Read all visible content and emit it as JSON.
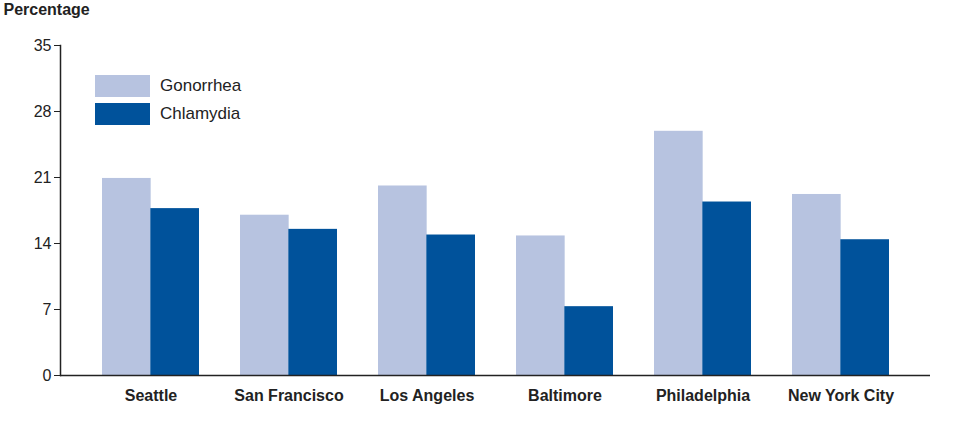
{
  "chart_data": {
    "type": "bar",
    "y_label": "Percentage",
    "categories": [
      "Seattle",
      "San Francisco",
      "Los Angeles",
      "Baltimore",
      "Philadelphia",
      "New York City"
    ],
    "series": [
      {
        "name": "Gonorrhea",
        "color": "#b7c3e0",
        "values": [
          20.9,
          17.0,
          20.1,
          14.8,
          25.9,
          19.2
        ]
      },
      {
        "name": "Chlamydia",
        "color": "#00529b",
        "values": [
          17.7,
          15.5,
          14.9,
          7.3,
          18.4,
          14.4
        ]
      }
    ],
    "ylim": [
      0,
      35
    ],
    "yticks": [
      0,
      7,
      14,
      21,
      28,
      35
    ],
    "grid": false,
    "legend": "top-left"
  }
}
